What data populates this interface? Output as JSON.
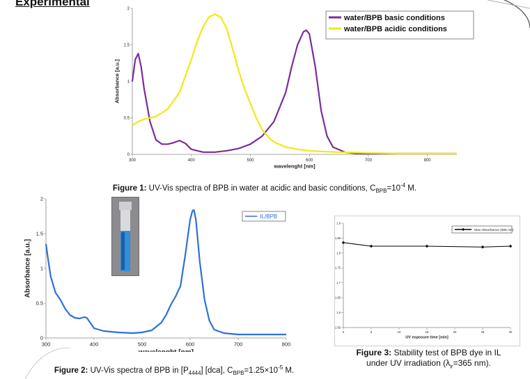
{
  "heading": "Experimental",
  "captions": {
    "fig1": {
      "label": "Figure 1:",
      "text": "UV-Vis spectra of BPB in water at acidic and basic conditions, C",
      "sub": "BPB",
      "text2": "=10",
      "sup": "-4",
      "text3": " M."
    },
    "fig2": {
      "label": "Figure 2:",
      "text": "UV-Vis spectra of BPB in [P",
      "sub1": "4444",
      "text2": "] [dca], C",
      "sub2": "BPB",
      "text3": "=1.25×10",
      "sup": "-5",
      "text4": " M."
    },
    "fig3": {
      "label": "Figure 3:",
      "text": "Stability test of BPB dye in IL",
      "line2a": "under UV irradiation (λ",
      "sub": "ir",
      "line2b": "=365 nm)."
    }
  },
  "chart_data": [
    {
      "type": "line",
      "id": "fig1",
      "xlabel": "wavelenght [nm]",
      "ylabel": "Absorbance [a.u.]",
      "xlim": [
        300,
        850
      ],
      "ylim": [
        0,
        2
      ],
      "xticks": [
        300,
        400,
        500,
        600,
        700,
        800
      ],
      "yticks": [
        0,
        0.5,
        1,
        1.5,
        2
      ],
      "ytick_labels": [
        "0",
        "0.5",
        "1",
        "1.5",
        "2"
      ],
      "legend_position": "top-right",
      "series": [
        {
          "name": "water/BPB basic conditions",
          "color": "#7b2d9b",
          "x": [
            300,
            305,
            310,
            315,
            320,
            330,
            340,
            350,
            360,
            370,
            380,
            390,
            400,
            420,
            440,
            460,
            480,
            500,
            520,
            540,
            560,
            570,
            580,
            590,
            595,
            600,
            610,
            620,
            630,
            640,
            660,
            680,
            700,
            750,
            800,
            850
          ],
          "y": [
            1.0,
            1.3,
            1.38,
            1.2,
            0.9,
            0.45,
            0.2,
            0.14,
            0.14,
            0.16,
            0.19,
            0.15,
            0.07,
            0.03,
            0.03,
            0.05,
            0.08,
            0.14,
            0.25,
            0.45,
            0.85,
            1.2,
            1.5,
            1.68,
            1.7,
            1.65,
            1.2,
            0.6,
            0.25,
            0.1,
            0.03,
            0.01,
            0.01,
            0.01,
            0.01,
            0.01
          ]
        },
        {
          "name": "water/BPB acidic conditions",
          "color": "#ecec12",
          "x": [
            300,
            310,
            320,
            340,
            360,
            380,
            400,
            410,
            420,
            430,
            440,
            450,
            460,
            470,
            480,
            490,
            500,
            510,
            520,
            530,
            540,
            560,
            580,
            600,
            620,
            650,
            700,
            750,
            800,
            850
          ],
          "y": [
            0.4,
            0.45,
            0.48,
            0.52,
            0.62,
            0.85,
            1.3,
            1.55,
            1.75,
            1.88,
            1.92,
            1.88,
            1.72,
            1.45,
            1.15,
            0.9,
            0.7,
            0.5,
            0.34,
            0.24,
            0.17,
            0.1,
            0.07,
            0.05,
            0.04,
            0.03,
            0.02,
            0.01,
            0.01,
            0.01
          ]
        }
      ]
    },
    {
      "type": "line",
      "id": "fig2",
      "xlabel": "wavelenght [nm]",
      "ylabel": "Absorbance [a.u.]",
      "xlim": [
        300,
        800
      ],
      "ylim": [
        0,
        2
      ],
      "xticks": [
        300,
        400,
        500,
        600,
        700,
        800
      ],
      "yticks": [
        0,
        0.5,
        1,
        1.5,
        2
      ],
      "ytick_labels": [
        "0",
        "0.5",
        "1",
        "1.5",
        "2"
      ],
      "legend_position": "top-right",
      "series": [
        {
          "name": "IL/BPB",
          "color": "#2f6fd8",
          "x": [
            300,
            305,
            310,
            320,
            330,
            340,
            350,
            360,
            370,
            380,
            385,
            390,
            400,
            420,
            450,
            480,
            500,
            520,
            540,
            550,
            560,
            570,
            580,
            590,
            600,
            605,
            608,
            612,
            620,
            630,
            640,
            650,
            670,
            700,
            750,
            800
          ],
          "y": [
            1.35,
            1.1,
            0.88,
            0.65,
            0.55,
            0.42,
            0.33,
            0.29,
            0.28,
            0.3,
            0.29,
            0.24,
            0.14,
            0.1,
            0.08,
            0.07,
            0.08,
            0.11,
            0.22,
            0.33,
            0.48,
            0.6,
            0.75,
            1.2,
            1.7,
            1.83,
            1.84,
            1.7,
            1.1,
            0.55,
            0.25,
            0.12,
            0.07,
            0.05,
            0.05,
            0.05
          ]
        }
      ]
    },
    {
      "type": "line",
      "id": "fig3",
      "xlabel": "UV exposure time [min]",
      "ylabel": "Absorbance [a.u.]",
      "xlim": [
        0,
        30
      ],
      "ylim": [
        1.55,
        1.9
      ],
      "xticks": [
        0,
        5,
        10,
        15,
        20,
        25,
        30
      ],
      "yticks": [
        1.55,
        1.6,
        1.65,
        1.7,
        1.75,
        1.8,
        1.85,
        1.9
      ],
      "ytick_labels": [
        "1.55",
        "1.6",
        "1.65",
        "1.7",
        "1.75",
        "1.8",
        "1.85",
        "1.9"
      ],
      "legend_position": "top-right",
      "series": [
        {
          "name": "Max Absorbance (595 nm)",
          "color": "#000000",
          "x": [
            0,
            5,
            15,
            25,
            30
          ],
          "y": [
            1.835,
            1.823,
            1.823,
            1.82,
            1.823
          ]
        }
      ]
    }
  ]
}
